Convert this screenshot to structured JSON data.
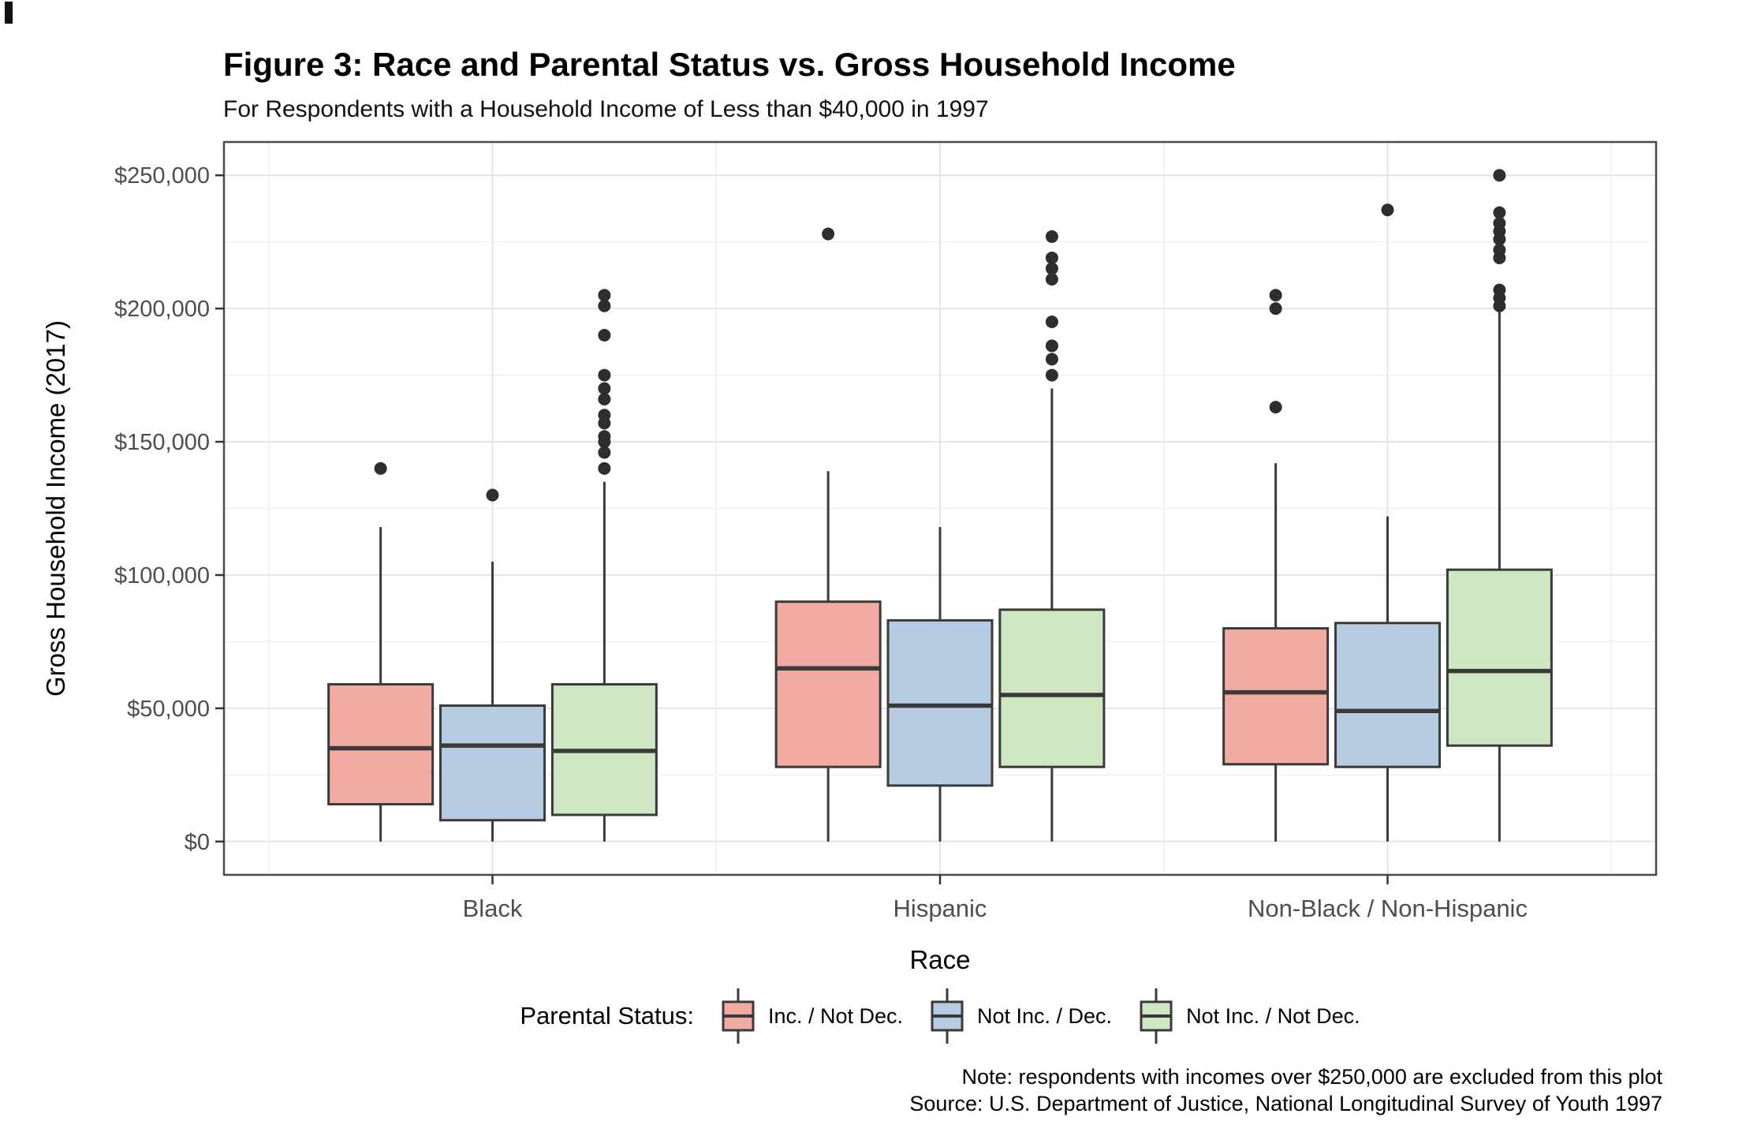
{
  "figure": {
    "title": "Figure 3: Race and Parental Status vs. Gross Household Income",
    "subtitle": "For Respondents with a Household Income of Less than $40,000 in 1997",
    "note": "Note: respondents with incomes over $250,000 are excluded from this plot",
    "source": "Source: U.S. Department of Justice, National Longitudinal Survey of Youth 1997"
  },
  "chart_data": {
    "type": "boxplot",
    "title": "Figure 3: Race and Parental Status vs. Gross Household Income",
    "subtitle": "For Respondents with a Household Income of Less than $40,000 in 1997",
    "xlabel": "Race",
    "ylabel": "Gross Household Income (2017)",
    "ylim": [
      0,
      250000
    ],
    "y_major_step": 50000,
    "y_minor_step": 25000,
    "grid": "major and minor horizontal gridlines, major vertical gridline per category",
    "y_ticks": [
      {
        "value": 0,
        "label": "$0"
      },
      {
        "value": 50000,
        "label": "$50,000"
      },
      {
        "value": 100000,
        "label": "$100,000"
      },
      {
        "value": 150000,
        "label": "$150,000"
      },
      {
        "value": 200000,
        "label": "$200,000"
      },
      {
        "value": 250000,
        "label": "$250,000"
      }
    ],
    "categories": [
      "Black",
      "Hispanic",
      "Non-Black / Non-Hispanic"
    ],
    "legend": {
      "title": "Parental Status:",
      "position": "bottom"
    },
    "colors": {
      "box_stroke": "#3a3a3a",
      "outlier": "#2e2e2e",
      "grid_major": "#e4e4e4",
      "grid_minor": "#f3f3f3",
      "panel_border": "#4a4a4a",
      "tick_text": "#4d4d4d",
      "axis_title": "#000000"
    },
    "series": [
      {
        "name": "Inc. / Not Dec.",
        "color": "#F2ABA3",
        "boxes": [
          {
            "category": "Black",
            "whisker_low": 0,
            "q1": 14000,
            "median": 35000,
            "q3": 59000,
            "whisker_high": 118000,
            "outliers": [
              140000
            ]
          },
          {
            "category": "Hispanic",
            "whisker_low": 0,
            "q1": 28000,
            "median": 65000,
            "q3": 90000,
            "whisker_high": 139000,
            "outliers": [
              228000
            ]
          },
          {
            "category": "Non-Black / Non-Hispanic",
            "whisker_low": 0,
            "q1": 29000,
            "median": 56000,
            "q3": 80000,
            "whisker_high": 142000,
            "outliers": [
              205000,
              200000,
              163000
            ]
          }
        ]
      },
      {
        "name": "Not Inc. / Dec.",
        "color": "#B7CCE2",
        "boxes": [
          {
            "category": "Black",
            "whisker_low": 0,
            "q1": 8000,
            "median": 36000,
            "q3": 51000,
            "whisker_high": 105000,
            "outliers": [
              130000
            ]
          },
          {
            "category": "Hispanic",
            "whisker_low": 0,
            "q1": 21000,
            "median": 51000,
            "q3": 83000,
            "whisker_high": 118000,
            "outliers": []
          },
          {
            "category": "Non-Black / Non-Hispanic",
            "whisker_low": 0,
            "q1": 28000,
            "median": 49000,
            "q3": 82000,
            "whisker_high": 122000,
            "outliers": [
              237000
            ]
          }
        ]
      },
      {
        "name": "Not Inc. / Not Dec.",
        "color": "#CFE6C2",
        "boxes": [
          {
            "category": "Black",
            "whisker_low": 0,
            "q1": 10000,
            "median": 34000,
            "q3": 59000,
            "whisker_high": 135000,
            "outliers": [
              205000,
              201000,
              190000,
              175000,
              170000,
              166000,
              160000,
              157000,
              152000,
              150000,
              146000,
              140000
            ]
          },
          {
            "category": "Hispanic",
            "whisker_low": 0,
            "q1": 28000,
            "median": 55000,
            "q3": 87000,
            "whisker_high": 170000,
            "outliers": [
              227000,
              219000,
              215000,
              211000,
              195000,
              186000,
              181000,
              175000
            ]
          },
          {
            "category": "Non-Black / Non-Hispanic",
            "whisker_low": 0,
            "q1": 36000,
            "median": 64000,
            "q3": 102000,
            "whisker_high": 200000,
            "outliers": [
              250000,
              236000,
              232000,
              229000,
              226000,
              222000,
              219000,
              207000,
              204000,
              201000
            ]
          }
        ]
      }
    ]
  }
}
